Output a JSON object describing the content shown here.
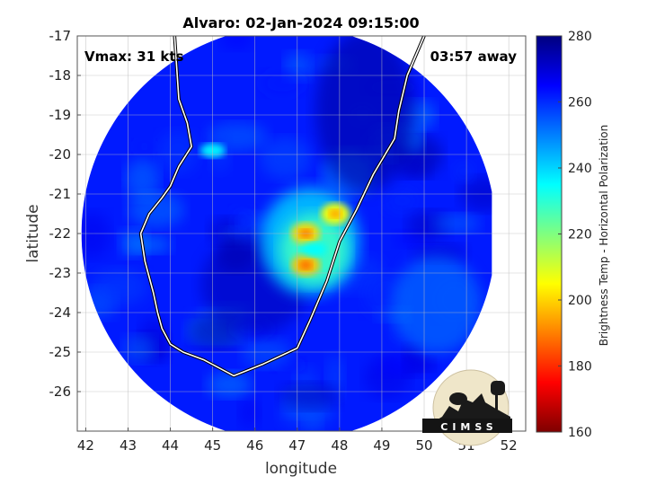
{
  "chart_data": {
    "type": "heatmap",
    "title": "Alvaro: 02-Jan-2024 09:15:00",
    "xlabel": "longitude",
    "ylabel": "latitude",
    "xlim": [
      41.8,
      52.4
    ],
    "ylim": [
      -27.0,
      -17.0
    ],
    "xticks": [
      42,
      43,
      44,
      45,
      46,
      47,
      48,
      49,
      50,
      51,
      52
    ],
    "yticks": [
      -17,
      -18,
      -19,
      -20,
      -21,
      -22,
      -23,
      -24,
      -25,
      -26
    ],
    "grid": true,
    "annotations": {
      "vmax": "Vmax: 31 kts",
      "away": "03:57 away"
    },
    "colorbar": {
      "label": "Brightness Temp - Horizontal Polarization",
      "range": [
        160,
        280
      ],
      "ticks": [
        160,
        180,
        200,
        220,
        240,
        260,
        280
      ],
      "colormap": [
        "#7f0000",
        "#ff0000",
        "#ffff00",
        "#00ffff",
        "#0000ff",
        "#00007f"
      ]
    },
    "swath": {
      "center": [
        46.8,
        -22.0
      ],
      "radius_deg": 4.9,
      "right_edge_lon": 51.6
    },
    "cold_cells": [
      {
        "lon": 47.2,
        "lat": -22.0,
        "tb": 200
      },
      {
        "lon": 47.2,
        "lat": -22.8,
        "tb": 198
      },
      {
        "lon": 47.9,
        "lat": -21.5,
        "tb": 205
      },
      {
        "lon": 47.4,
        "lat": -22.4,
        "tb": 235
      },
      {
        "lon": 45.0,
        "lat": -19.9,
        "tb": 235
      }
    ],
    "coastline": [
      [
        44.1,
        -17.0
      ],
      [
        44.2,
        -18.6
      ],
      [
        44.4,
        -19.2
      ],
      [
        44.5,
        -19.8
      ],
      [
        44.2,
        -20.3
      ],
      [
        44.0,
        -20.8
      ],
      [
        43.8,
        -21.1
      ],
      [
        43.5,
        -21.5
      ],
      [
        43.3,
        -22.0
      ],
      [
        43.4,
        -22.7
      ],
      [
        43.6,
        -23.5
      ],
      [
        43.7,
        -24.0
      ],
      [
        43.8,
        -24.4
      ],
      [
        44.0,
        -24.8
      ],
      [
        44.3,
        -25.0
      ],
      [
        44.8,
        -25.2
      ],
      [
        45.5,
        -25.6
      ],
      [
        46.2,
        -25.3
      ],
      [
        47.0,
        -24.9
      ],
      [
        47.3,
        -24.2
      ],
      [
        47.7,
        -23.2
      ],
      [
        48.0,
        -22.2
      ],
      [
        48.4,
        -21.4
      ],
      [
        48.8,
        -20.5
      ],
      [
        49.3,
        -19.6
      ],
      [
        49.4,
        -18.9
      ],
      [
        49.6,
        -18.0
      ],
      [
        50.0,
        -17.0
      ]
    ]
  },
  "logo": {
    "text": "CIMSS"
  }
}
